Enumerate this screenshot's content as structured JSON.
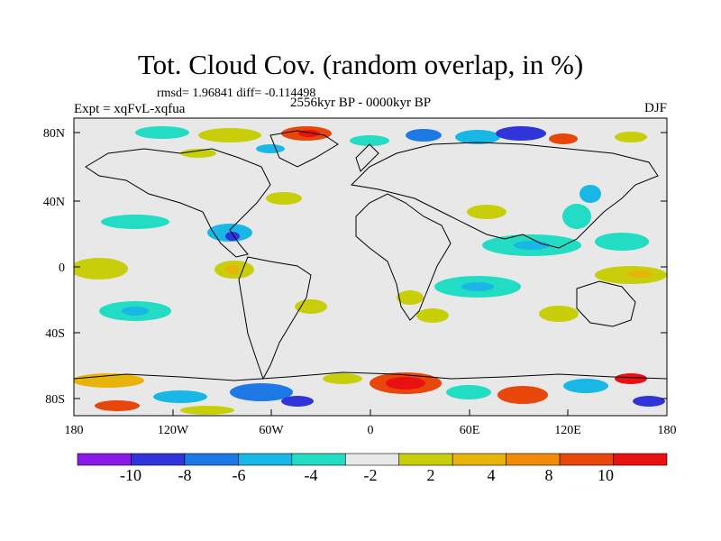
{
  "title": "Tot. Cloud Cov. (random overlap, in %)",
  "stats": "rmsd= 1.96841 diff= -0.114498",
  "experiment": "Expt = xqFvL-xqfua",
  "period": "2556kyr BP - 0000kyr BP",
  "season": "DJF",
  "lat_labels": [
    "80N",
    "40N",
    "0",
    "40S",
    "80S"
  ],
  "lon_labels": [
    "180",
    "120W",
    "60W",
    "0",
    "60E",
    "120E",
    "180"
  ],
  "colorbar": {
    "labels": [
      "-10",
      "-8",
      "-6",
      "-4",
      "-2",
      "2",
      "4",
      "8",
      "10"
    ],
    "colors": [
      "#8a1ae6",
      "#2f35d8",
      "#1e78e6",
      "#19b7e6",
      "#22dcc3",
      "#e8e8e8",
      "#c8cf0a",
      "#e8b40a",
      "#f08c0a",
      "#e8460a",
      "#e81010"
    ]
  }
}
